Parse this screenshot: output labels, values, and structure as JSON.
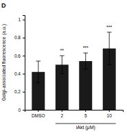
{
  "chart_data": {
    "type": "bar",
    "panel_label": "D",
    "categories": [
      "DMSO",
      "2",
      "5",
      "10"
    ],
    "values": [
      0.42,
      0.5,
      0.54,
      0.68
    ],
    "errors": [
      0.12,
      0.1,
      0.09,
      0.18
    ],
    "significance": [
      null,
      "**",
      "***",
      "***"
    ],
    "color": "#1a1a1a",
    "ylim": [
      0,
      1.05
    ],
    "yticks": [
      0,
      0.2,
      0.4,
      0.6,
      0.8,
      1
    ],
    "ylabel": "Golgi-associated fluorescence (a.u.)",
    "xlabel": "iAkt (μM)"
  }
}
